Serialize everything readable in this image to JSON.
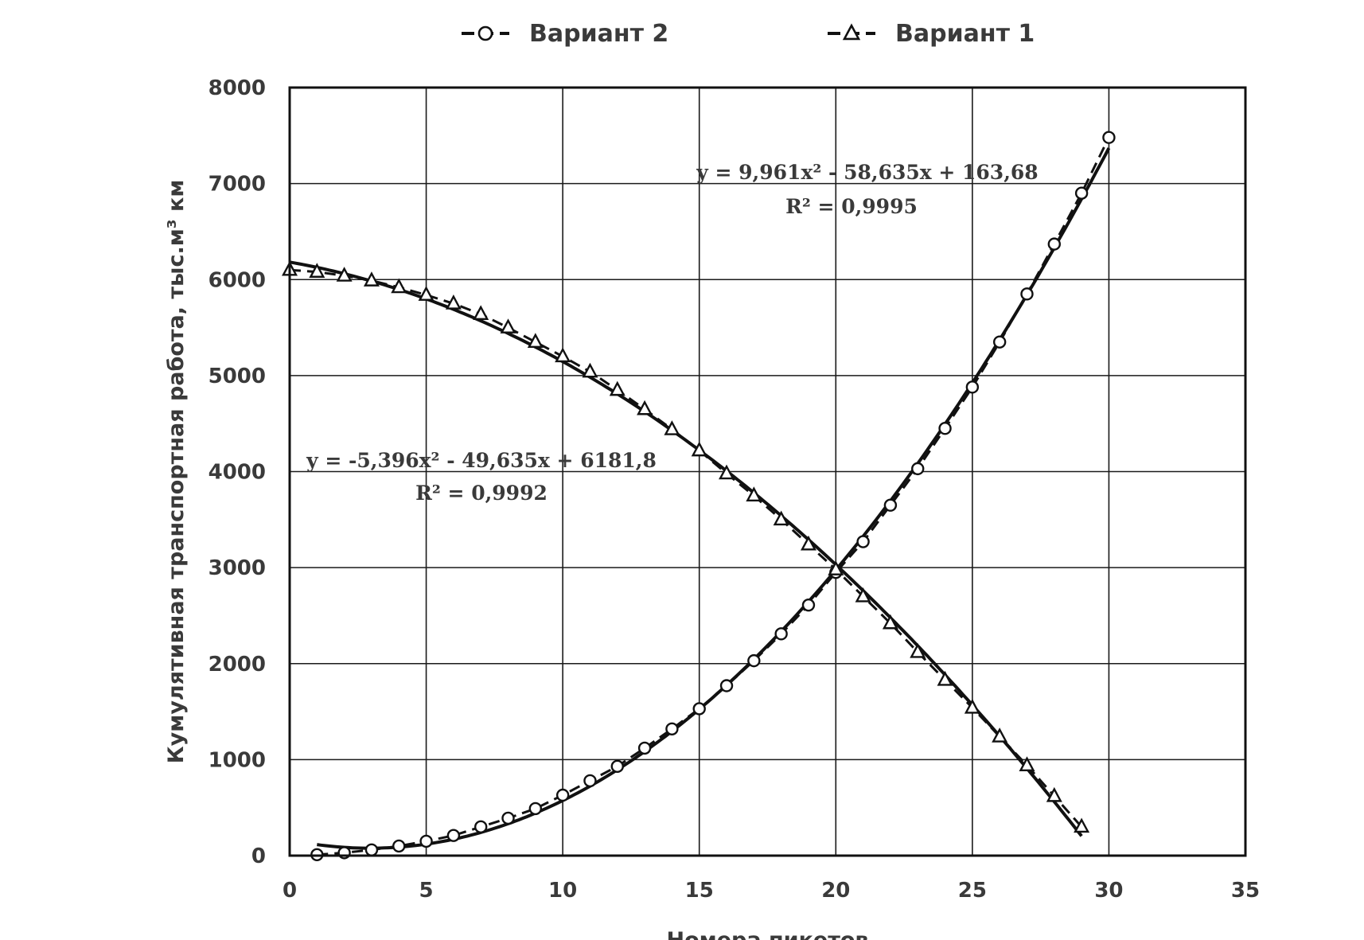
{
  "chart_data": {
    "type": "scatter",
    "title": "",
    "xlabel": "Номера пикетов",
    "ylabel": "Кумулятивная транспортная работа, тыс.м³ км",
    "xlim": [
      0,
      35
    ],
    "ylim": [
      0,
      8000
    ],
    "x_ticks": [
      "0",
      "5",
      "10",
      "15",
      "20",
      "25",
      "30",
      "35"
    ],
    "y_ticks": [
      "0",
      "1000",
      "2000",
      "3000",
      "4000",
      "5000",
      "6000",
      "7000",
      "8000"
    ],
    "grid": true,
    "legend_position": "top",
    "legend": [
      {
        "label": "Вариант 2",
        "marker": "circle"
      },
      {
        "label": "Вариант 1",
        "marker": "triangle"
      }
    ],
    "series": [
      {
        "name": "Вариант 2",
        "marker": "circle",
        "color": "#111111",
        "x": [
          1,
          2,
          3,
          4,
          5,
          6,
          7,
          8,
          9,
          10,
          11,
          12,
          13,
          14,
          15,
          16,
          17,
          18,
          19,
          20,
          21,
          22,
          23,
          24,
          25,
          26,
          27,
          28,
          29,
          30
        ],
        "y": [
          10,
          30,
          60,
          100,
          150,
          210,
          300,
          390,
          490,
          630,
          780,
          930,
          1120,
          1320,
          1530,
          1770,
          2030,
          2310,
          2610,
          2950,
          3270,
          3650,
          4030,
          4450,
          4880,
          5350,
          5850,
          6370,
          6900,
          7480
        ]
      },
      {
        "name": "Вариант 1",
        "marker": "triangle",
        "color": "#111111",
        "x": [
          0,
          1,
          2,
          3,
          4,
          5,
          6,
          7,
          8,
          9,
          10,
          11,
          12,
          13,
          14,
          15,
          16,
          17,
          18,
          19,
          20,
          21,
          22,
          23,
          24,
          25,
          26,
          27,
          28,
          29
        ],
        "y": [
          6100,
          6080,
          6040,
          5990,
          5920,
          5840,
          5750,
          5640,
          5500,
          5350,
          5200,
          5040,
          4850,
          4650,
          4440,
          4220,
          3980,
          3750,
          3500,
          3240,
          2980,
          2700,
          2420,
          2120,
          1830,
          1540,
          1240,
          940,
          620,
          300
        ]
      }
    ],
    "trendlines": [
      {
        "for": "Вариант 2",
        "a": 9.961,
        "b": -58.635,
        "c": 163.68,
        "x_range": [
          1,
          30
        ]
      },
      {
        "for": "Вариант 1",
        "a": -5.396,
        "b": -49.635,
        "c": 6181.8,
        "x_range": [
          0,
          29
        ]
      }
    ],
    "annotations": [
      {
        "equation": "y = 9,961x² - 58,635x + 163,68",
        "r2": "R² = 0,9995"
      },
      {
        "equation": "y = -5,396x² - 49,635x + 6181,8",
        "r2": "R² = 0,9992"
      }
    ]
  }
}
